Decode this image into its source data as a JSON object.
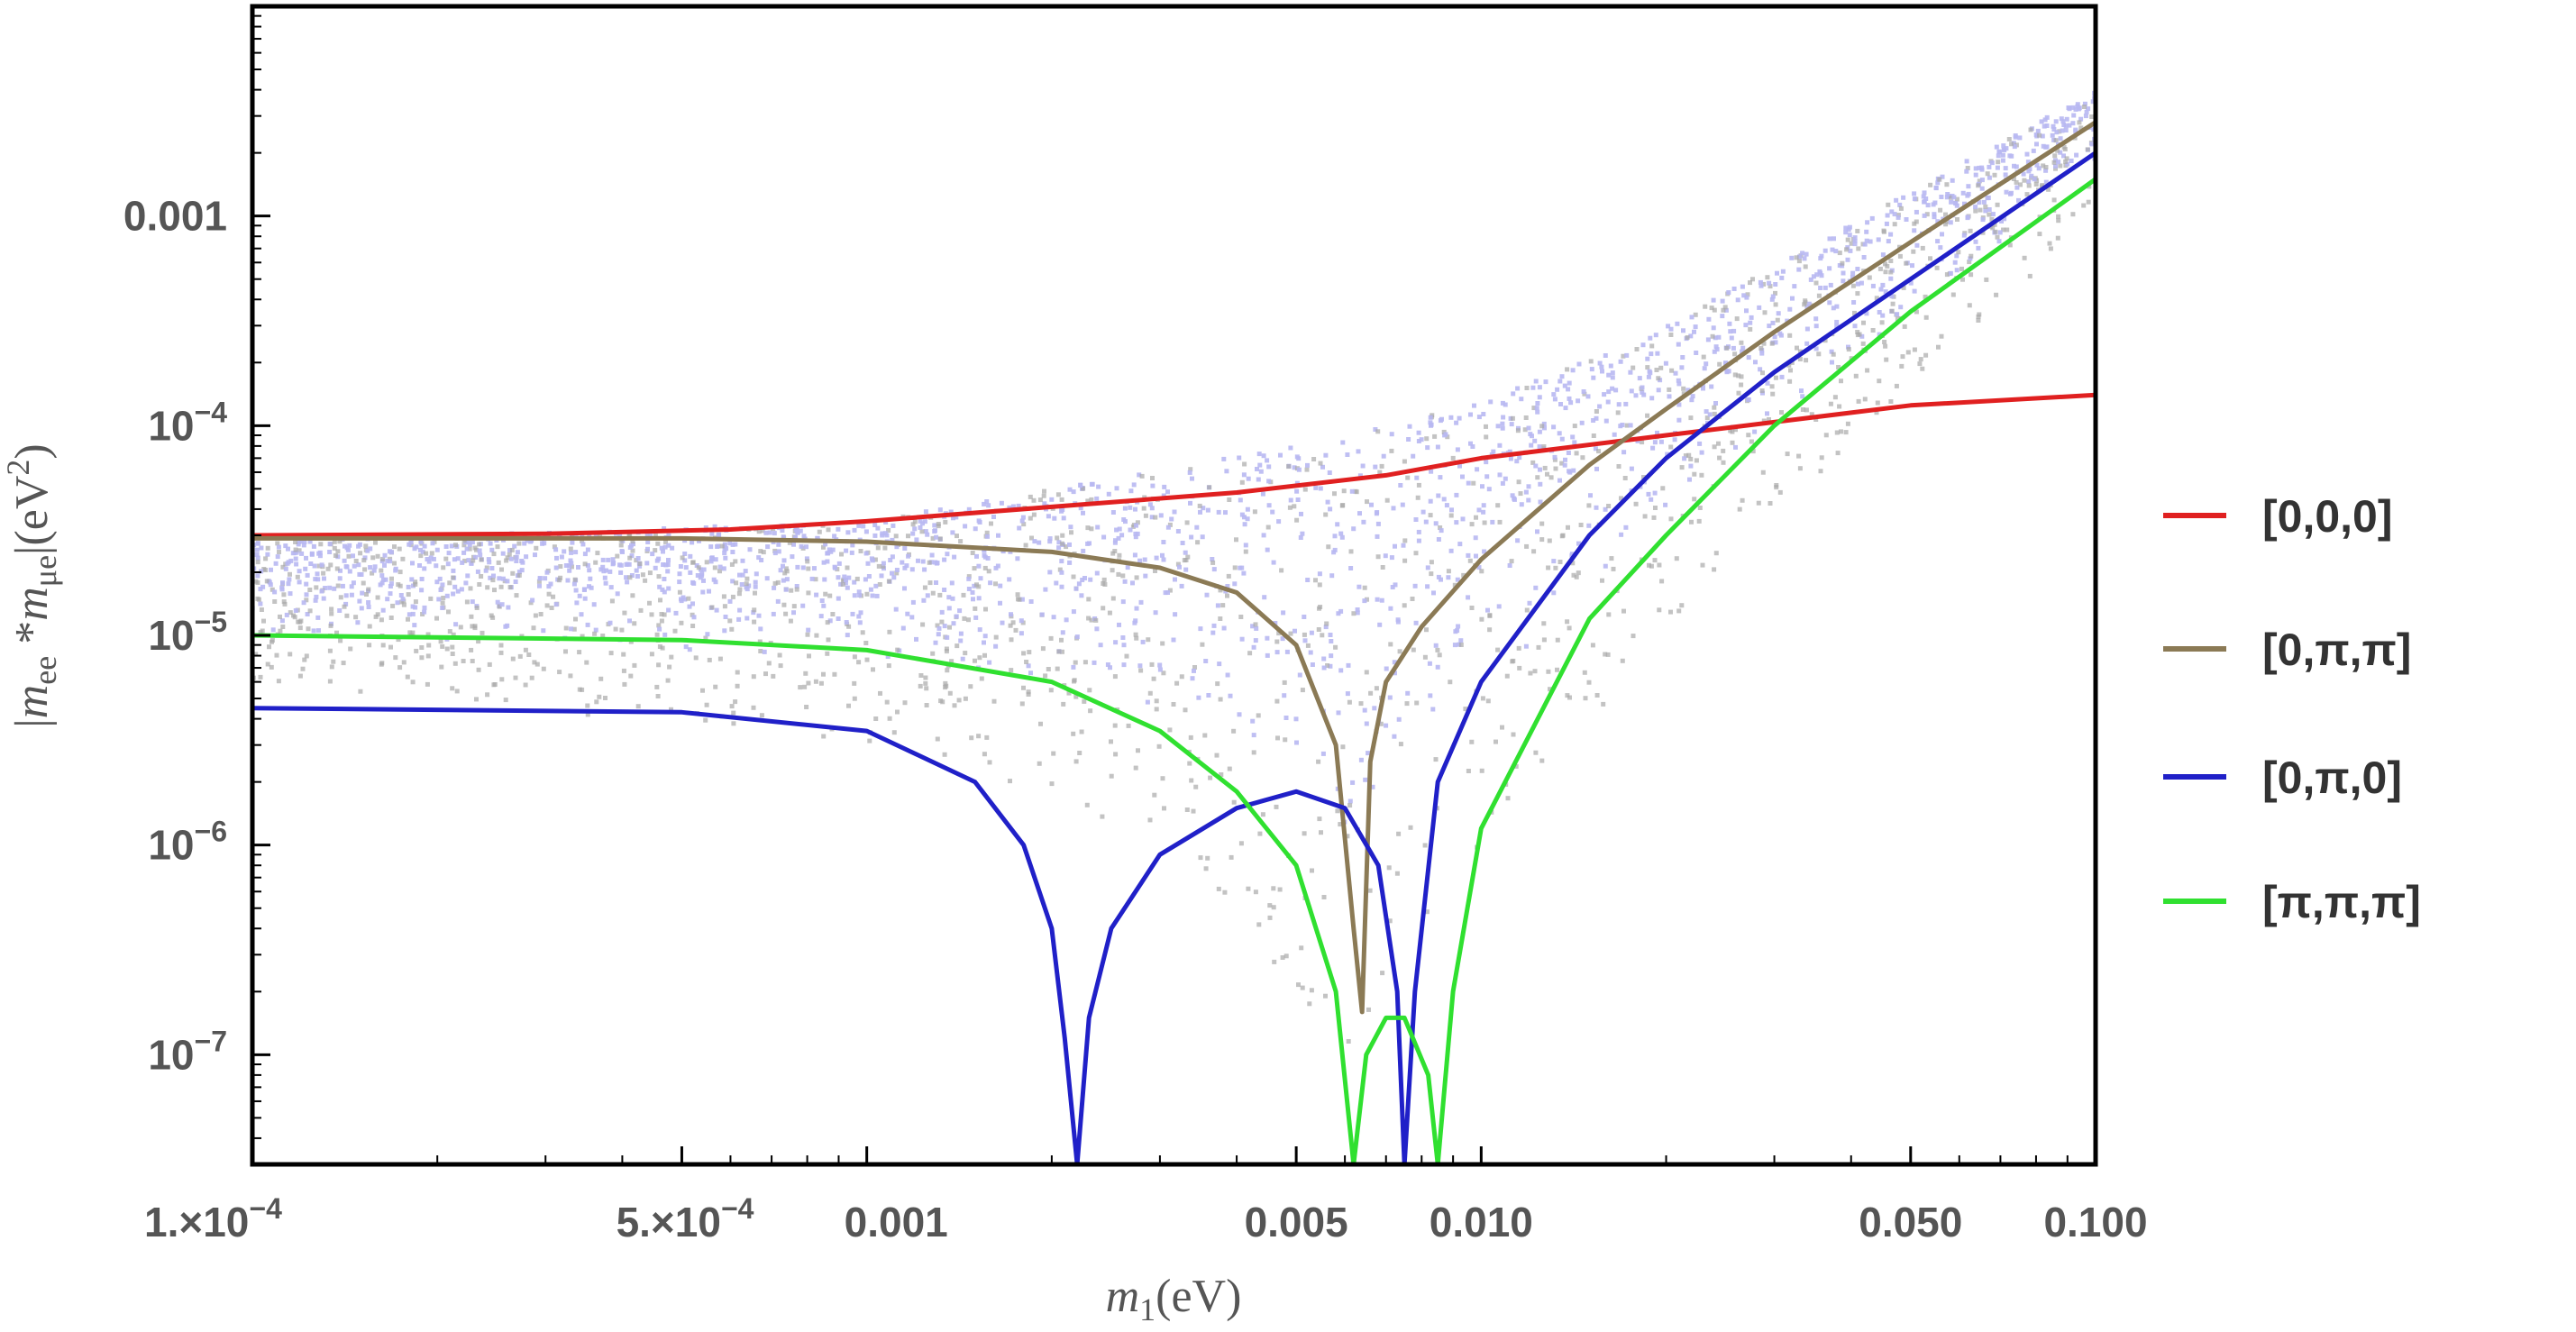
{
  "chart_data": {
    "type": "line",
    "xlabel_parts": {
      "italic": "m",
      "sub": "1",
      "rest": "(eV)"
    },
    "ylabel_parts": {
      "bar": "|",
      "m1": "m",
      "sub1": "ee",
      "star": " *",
      "m2": "m",
      "sub2": "μe",
      "bar2": "|",
      "unit": "(eV",
      "sup": "2",
      "close": ")"
    },
    "x_scale": "log",
    "y_scale": "log",
    "xlim": [
      0.0001,
      0.1
    ],
    "ylim": [
      3e-08,
      0.01
    ],
    "grid": false,
    "legend_position": "right",
    "x_ticks": [
      {
        "value": 0.0001,
        "label": "1.×10",
        "sup": "−4"
      },
      {
        "value": 0.0005,
        "label": "5.×10",
        "sup": "−4"
      },
      {
        "value": 0.001,
        "label": "0.001"
      },
      {
        "value": 0.005,
        "label": "0.005"
      },
      {
        "value": 0.01,
        "label": "0.010"
      },
      {
        "value": 0.05,
        "label": "0.050"
      },
      {
        "value": 0.1,
        "label": "0.100"
      }
    ],
    "y_ticks": [
      {
        "value": 1e-07,
        "label": "10",
        "sup": "−7"
      },
      {
        "value": 1e-06,
        "label": "10",
        "sup": "−6"
      },
      {
        "value": 1e-05,
        "label": "10",
        "sup": "−5"
      },
      {
        "value": 0.0001,
        "label": "10",
        "sup": "−4"
      },
      {
        "value": 0.001,
        "label": "0.001"
      }
    ],
    "scatter_region": {
      "color_blue": "#b8b8f2",
      "color_gray": "#aaaaaa",
      "upper": [
        [
          0.0001,
          2.8e-05
        ],
        [
          0.001,
          3.5e-05
        ],
        [
          0.005,
          8e-05
        ],
        [
          0.01,
          0.00013
        ],
        [
          0.02,
          0.0003
        ],
        [
          0.05,
          0.0013
        ],
        [
          0.1,
          0.004
        ]
      ],
      "lower": [
        [
          0.0001,
          6e-06
        ],
        [
          0.001,
          3e-06
        ],
        [
          0.003,
          1e-06
        ],
        [
          0.006,
          1e-07
        ],
        [
          0.01,
          1e-06
        ],
        [
          0.02,
          1e-05
        ],
        [
          0.05,
          0.00015
        ],
        [
          0.1,
          0.001
        ]
      ]
    },
    "series": [
      {
        "name": "[0,0,0]",
        "color": "#e02020",
        "points": [
          [
            0.0001,
            3e-05
          ],
          [
            0.0003,
            3.05e-05
          ],
          [
            0.0006,
            3.2e-05
          ],
          [
            0.001,
            3.5e-05
          ],
          [
            0.002,
            4.1e-05
          ],
          [
            0.004,
            4.8e-05
          ],
          [
            0.007,
            5.8e-05
          ],
          [
            0.01,
            7e-05
          ],
          [
            0.02,
            9e-05
          ],
          [
            0.05,
            0.000125
          ],
          [
            0.1,
            0.00014
          ]
        ]
      },
      {
        "name": "[0,π,π]",
        "color": "#8b7a55",
        "points": [
          [
            0.0001,
            2.9e-05
          ],
          [
            0.0005,
            2.9e-05
          ],
          [
            0.001,
            2.8e-05
          ],
          [
            0.002,
            2.5e-05
          ],
          [
            0.003,
            2.1e-05
          ],
          [
            0.004,
            1.6e-05
          ],
          [
            0.005,
            9e-06
          ],
          [
            0.0058,
            3e-06
          ],
          [
            0.0062,
            4e-07
          ],
          [
            0.0064,
            1.6e-07
          ],
          [
            0.0066,
            2.5e-06
          ],
          [
            0.007,
            6e-06
          ],
          [
            0.008,
            1.1e-05
          ],
          [
            0.01,
            2.3e-05
          ],
          [
            0.015,
            6.5e-05
          ],
          [
            0.02,
            0.00012
          ],
          [
            0.03,
            0.00028
          ],
          [
            0.05,
            0.00075
          ],
          [
            0.1,
            0.0028
          ]
        ]
      },
      {
        "name": "[0,π,0]",
        "color": "#2020c8",
        "points": [
          [
            0.0001,
            4.5e-06
          ],
          [
            0.0005,
            4.3e-06
          ],
          [
            0.001,
            3.5e-06
          ],
          [
            0.0015,
            2e-06
          ],
          [
            0.0018,
            1e-06
          ],
          [
            0.002,
            4e-07
          ],
          [
            0.0021,
            1.2e-07
          ],
          [
            0.0022,
            3e-08
          ],
          [
            0.0023,
            1.5e-07
          ],
          [
            0.0025,
            4e-07
          ],
          [
            0.003,
            9e-07
          ],
          [
            0.004,
            1.5e-06
          ],
          [
            0.005,
            1.8e-06
          ],
          [
            0.006,
            1.5e-06
          ],
          [
            0.0068,
            8e-07
          ],
          [
            0.0073,
            2e-07
          ],
          [
            0.0075,
            3e-08
          ],
          [
            0.0078,
            2e-07
          ],
          [
            0.0085,
            2e-06
          ],
          [
            0.01,
            6e-06
          ],
          [
            0.015,
            3e-05
          ],
          [
            0.02,
            7e-05
          ],
          [
            0.03,
            0.00018
          ],
          [
            0.05,
            0.0005
          ],
          [
            0.1,
            0.002
          ]
        ]
      },
      {
        "name": "[π,π,π]",
        "color": "#30e030",
        "points": [
          [
            0.0001,
            1e-05
          ],
          [
            0.0005,
            9.5e-06
          ],
          [
            0.001,
            8.5e-06
          ],
          [
            0.002,
            6e-06
          ],
          [
            0.003,
            3.5e-06
          ],
          [
            0.004,
            1.8e-06
          ],
          [
            0.005,
            8e-07
          ],
          [
            0.0058,
            2e-07
          ],
          [
            0.0062,
            3e-08
          ],
          [
            0.0065,
            1e-07
          ],
          [
            0.007,
            1.5e-07
          ],
          [
            0.0075,
            1.5e-07
          ],
          [
            0.0082,
            8e-08
          ],
          [
            0.0085,
            3e-08
          ],
          [
            0.009,
            2e-07
          ],
          [
            0.01,
            1.2e-06
          ],
          [
            0.015,
            1.2e-05
          ],
          [
            0.02,
            3e-05
          ],
          [
            0.03,
            0.0001
          ],
          [
            0.05,
            0.00035
          ],
          [
            0.1,
            0.0015
          ]
        ]
      }
    ]
  }
}
